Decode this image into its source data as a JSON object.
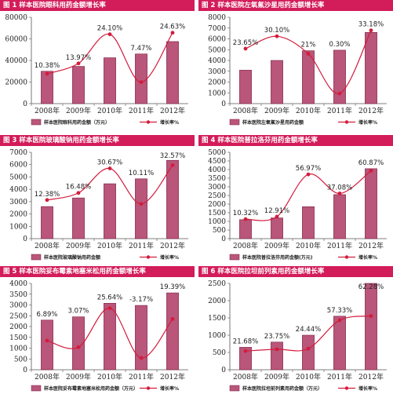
{
  "colors": {
    "bar_fill": "#b9567a",
    "bar_edge": "#7a1f44",
    "line": "#d31c3c",
    "title_bg": "#d31c5a",
    "title_text": "#ffffff"
  },
  "chart_data": [
    {
      "type": "bar",
      "title": "图 1  样本医院眼科用药金额增长率",
      "categories": [
        "2008年",
        "2009年",
        "2010年",
        "2011年",
        "2012年"
      ],
      "series": [
        {
          "name": "样本医院眼科用药金额（万元）",
          "values": [
            30000,
            34500,
            42500,
            46000,
            57500
          ]
        },
        {
          "name": "增长率%",
          "values": [
            10.38,
            13.97,
            24.1,
            7.47,
            24.63
          ]
        }
      ],
      "labels": [
        "10.38%",
        "13.97%",
        "24.10%",
        "7.47%",
        "24.63%"
      ],
      "yticks": [
        0,
        20000,
        40000,
        60000,
        80000
      ],
      "ylim": [
        0,
        80000
      ],
      "growth_range": [
        0,
        30
      ]
    },
    {
      "type": "bar",
      "title": "图 2  样本医院左氧氟沙星用药金额增长率",
      "categories": [
        "2008年",
        "2009年",
        "2010年",
        "2011年",
        "2012年"
      ],
      "series": [
        {
          "name": "样本医院左氧氟沙星用药金额",
          "values": [
            3100,
            4000,
            4900,
            4950,
            6600
          ]
        },
        {
          "name": "增长率%",
          "values": [
            23.65,
            30.1,
            21,
            0.3,
            33.18
          ]
        }
      ],
      "labels": [
        "23.65%",
        "30.10%",
        "21%",
        "0.30%",
        "33.18%"
      ],
      "yticks": [
        0,
        1000,
        2000,
        3000,
        4000,
        5000,
        6000,
        7000,
        8000
      ],
      "ylim": [
        0,
        8000
      ],
      "growth_range": [
        -5,
        40
      ]
    },
    {
      "type": "bar",
      "title": "图 3  样本医院玻璃酸钠用药金额增长率",
      "categories": [
        "2008年",
        "2009年",
        "2010年",
        "2011年",
        "2012年"
      ],
      "series": [
        {
          "name": "样本医院玻璃酸钠用药金额",
          "values": [
            2600,
            3300,
            4450,
            4850,
            6350
          ]
        },
        {
          "name": "增长率%",
          "values": [
            12.38,
            16.48,
            30.67,
            10.11,
            32.57
          ]
        }
      ],
      "labels": [
        "12.38%",
        "16.48%",
        "30.67%",
        "10.11%",
        "32.57%"
      ],
      "yticks": [
        0,
        1000,
        2000,
        3000,
        4000,
        5000,
        6000,
        7000
      ],
      "ylim": [
        0,
        7000
      ],
      "growth_range": [
        -10,
        40
      ]
    },
    {
      "type": "bar",
      "title": "图 4  样本医院普拉洛芬用药金额增长率",
      "categories": [
        "2008年",
        "2009年",
        "2010年",
        "2011年",
        "2012年"
      ],
      "series": [
        {
          "name": "样本医院普拉洛芬用药金额(万元)",
          "values": [
            1100,
            1200,
            1850,
            2550,
            4050
          ]
        },
        {
          "name": "增长率%",
          "values": [
            10.32,
            12.91,
            56.97,
            37.08,
            60.87
          ]
        }
      ],
      "labels": [
        "10.32%",
        "12.91%",
        "56.97%",
        "37.08%",
        "60.87%"
      ],
      "yticks": [
        0,
        500,
        1000,
        1500,
        2000,
        2500,
        3000,
        3500,
        4000,
        4500,
        5000
      ],
      "ylim": [
        0,
        5000
      ],
      "growth_range": [
        -10,
        80
      ]
    },
    {
      "type": "bar",
      "title": "图 5  样本医院妥布霉素地塞米松用药金额增长率",
      "categories": [
        "2008年",
        "2009年",
        "2010年",
        "2011年",
        "2012年"
      ],
      "series": [
        {
          "name": "样本医院妥布霉素地塞米松用药金额（万元）",
          "values": [
            2300,
            2450,
            3080,
            2980,
            3560
          ]
        },
        {
          "name": "增长率%",
          "values": [
            6.89,
            3.07,
            25.64,
            -3.17,
            19.39
          ]
        }
      ],
      "labels": [
        "6.89%",
        "3.07%",
        "25.64%",
        "-3.17%",
        "19.39%"
      ],
      "yticks": [
        0,
        500,
        1000,
        1500,
        2000,
        2500,
        3000,
        3500,
        4000
      ],
      "ylim": [
        0,
        4000
      ],
      "growth_range": [
        -10,
        40
      ]
    },
    {
      "type": "bar",
      "title": "图 6  样本医院拉坦前列素用药金额增长率",
      "categories": [
        "2008年",
        "2009年",
        "2010年",
        "2011年",
        "2012年"
      ],
      "series": [
        {
          "name": "样本医院拉坦前列素用药金额（万元）",
          "values": [
            650,
            800,
            1000,
            1550,
            2500
          ]
        },
        {
          "name": "增长率%",
          "values": [
            21.68,
            23.75,
            24.44,
            57.33,
            62.28
          ]
        }
      ],
      "labels": [
        "21.68%",
        "23.75%",
        "24.44%",
        "57.33%",
        "62.28%"
      ],
      "yticks": [
        0,
        500,
        1000,
        1500,
        2000,
        2500
      ],
      "ylim": [
        0,
        2500
      ],
      "growth_range": [
        0,
        100
      ]
    }
  ]
}
